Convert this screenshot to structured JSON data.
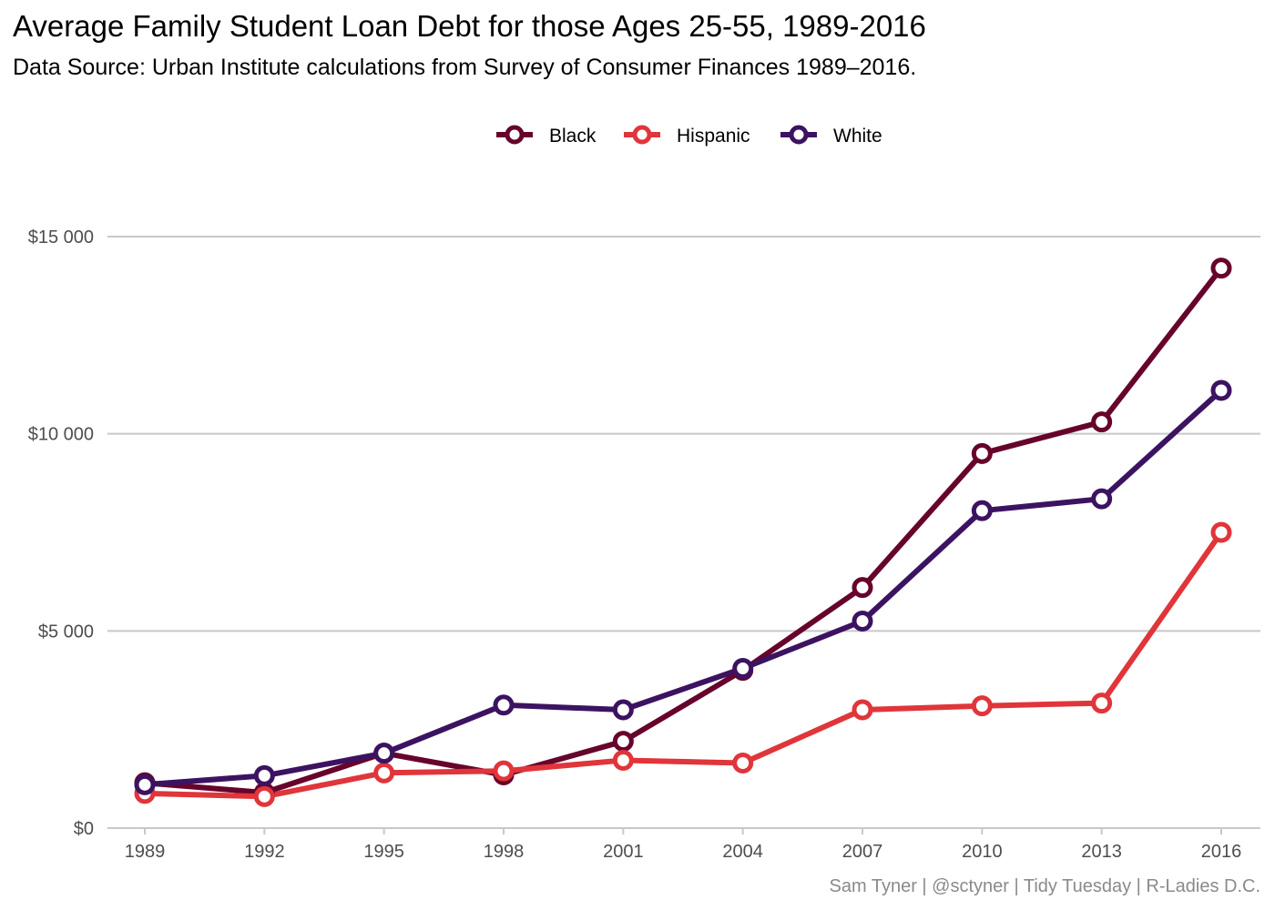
{
  "title": "Average Family Student Loan Debt for those Ages 25-55, 1989-2016",
  "subtitle": "Data Source: Urban Institute calculations from Survey of Consumer Finances 1989–2016.",
  "caption": "Sam Tyner | @sctyner | Tidy Tuesday | R-Ladies D.C.",
  "chart_data": {
    "type": "line",
    "title": "Average Family Student Loan Debt for those Ages 25-55, 1989-2016",
    "subtitle": "Data Source: Urban Institute calculations from Survey of Consumer Finances 1989–2016.",
    "xlabel": "",
    "ylabel": "",
    "x": [
      1989,
      1992,
      1995,
      1998,
      2001,
      2004,
      2007,
      2010,
      2013,
      2016
    ],
    "x_tick_labels": [
      "1989",
      "1992",
      "1995",
      "1998",
      "2001",
      "2004",
      "2007",
      "2010",
      "2013",
      "2016"
    ],
    "ylim": [
      0,
      15000
    ],
    "y_ticks": [
      0,
      5000,
      10000,
      15000
    ],
    "y_tick_labels": [
      "$0",
      "$5 000",
      "$10 000",
      "$15 000"
    ],
    "grid": "horizontal-major",
    "legend_position": "top",
    "series": [
      {
        "name": "Black",
        "color": "#67042c",
        "values": [
          1150,
          900,
          1900,
          1350,
          2200,
          4000,
          6100,
          9500,
          10300,
          14200
        ]
      },
      {
        "name": "Hispanic",
        "color": "#e0353a",
        "values": [
          880,
          800,
          1400,
          1450,
          1720,
          1650,
          3000,
          3100,
          3170,
          7500
        ]
      },
      {
        "name": "White",
        "color": "#3c1361",
        "values": [
          1100,
          1330,
          1900,
          3120,
          3000,
          4050,
          5250,
          8050,
          8350,
          11100
        ]
      }
    ]
  }
}
